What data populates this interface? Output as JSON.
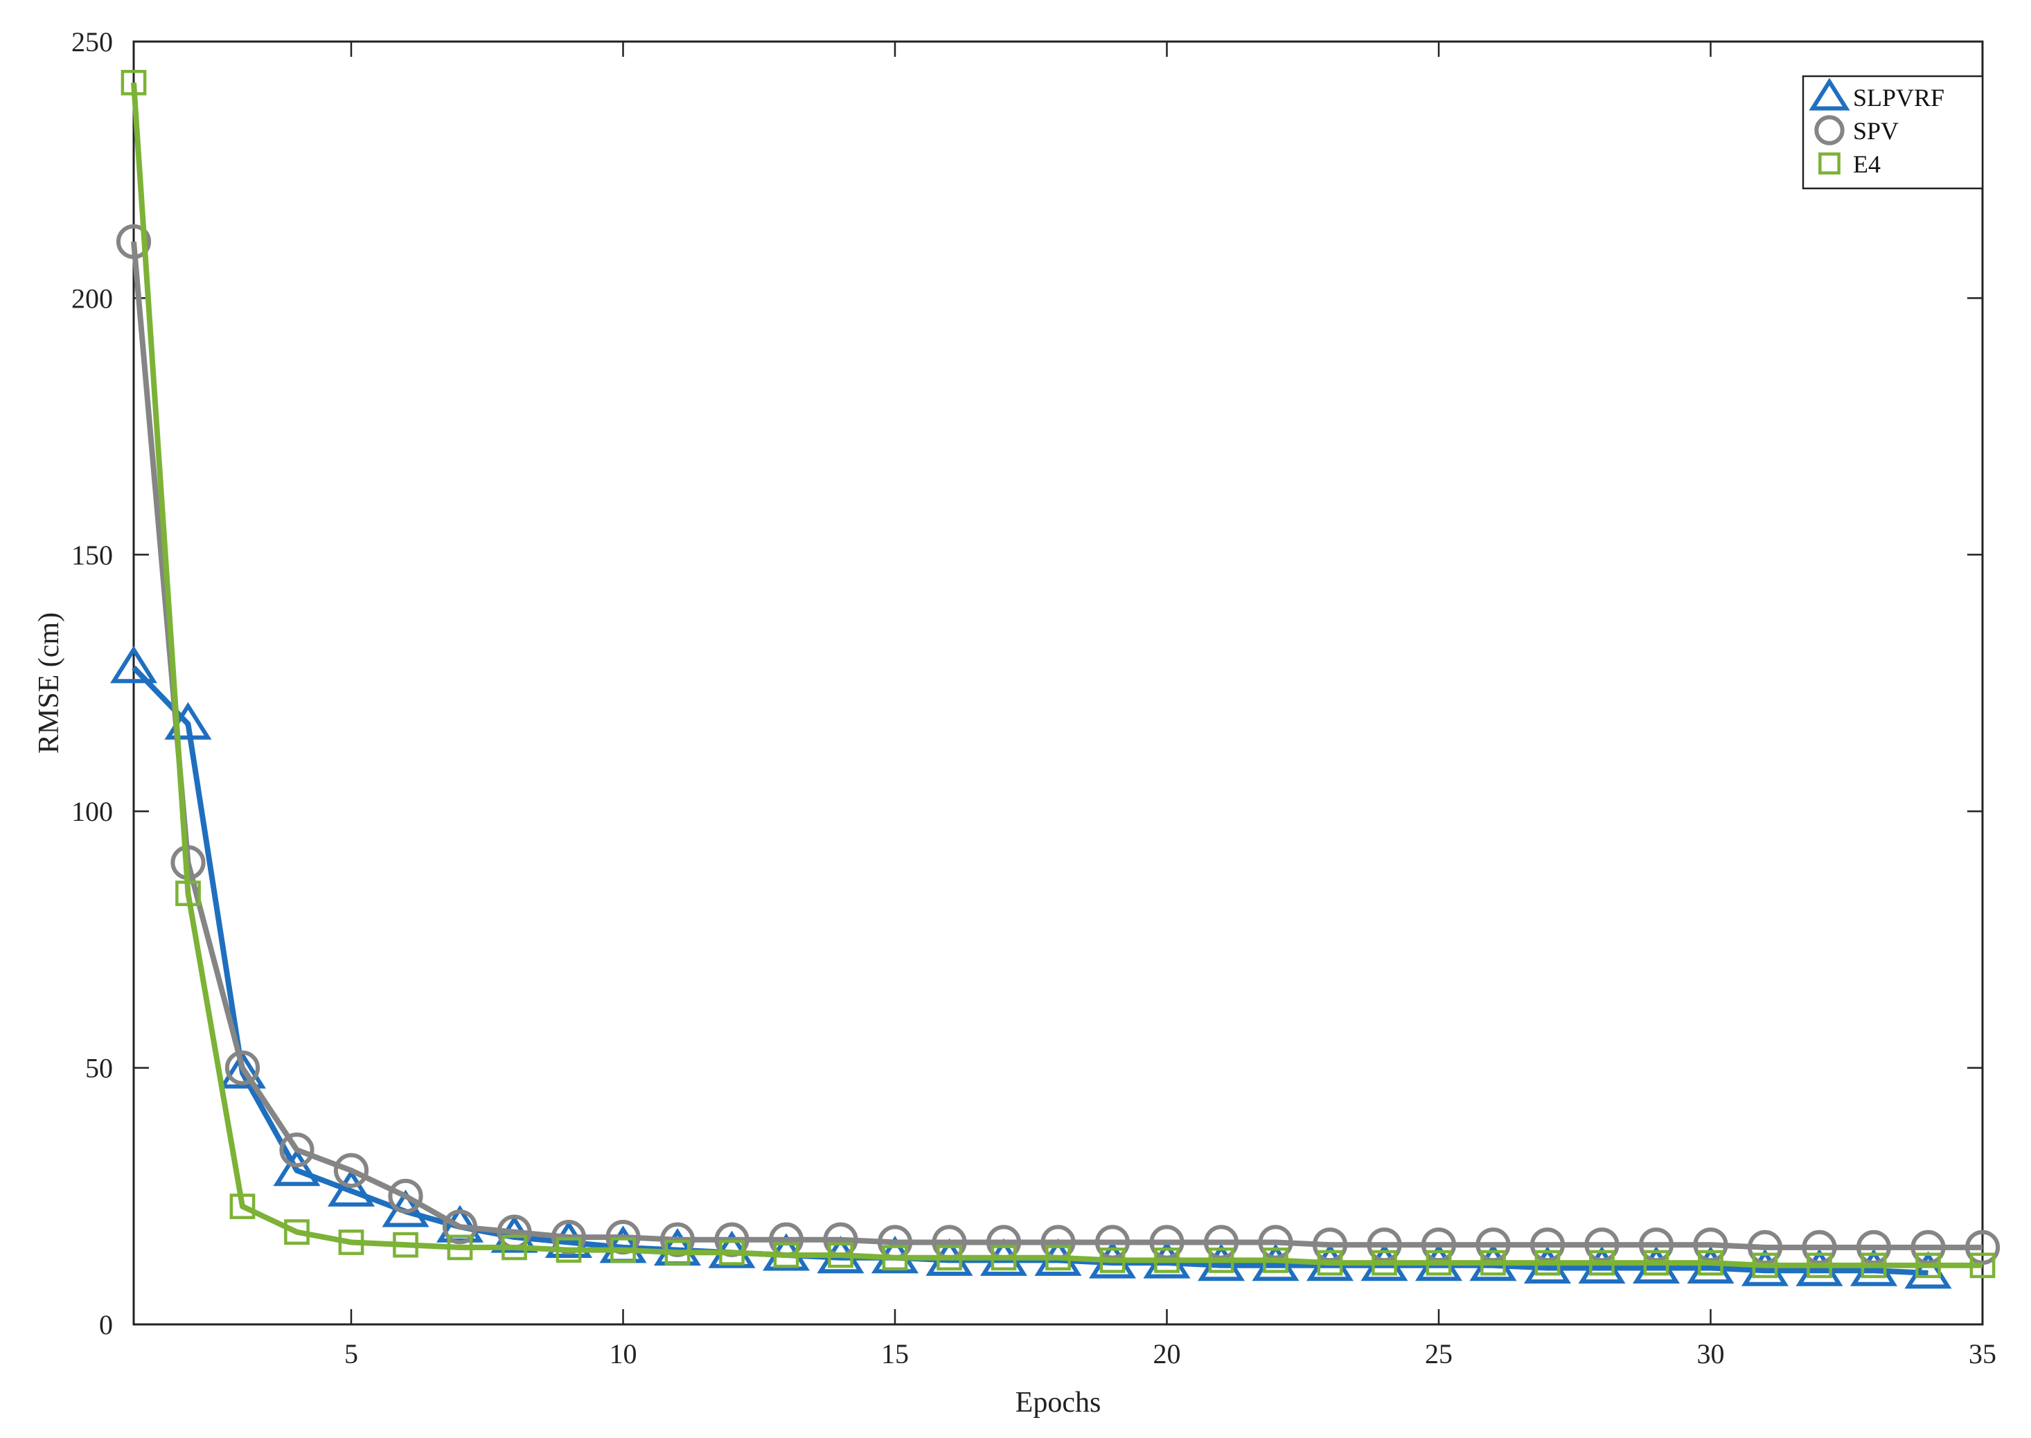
{
  "chart_data": {
    "type": "line",
    "title": "",
    "xlabel": "Epochs",
    "ylabel": "RMSE (cm)",
    "xlim": [
      1,
      35
    ],
    "ylim": [
      0,
      250
    ],
    "xticks": [
      5,
      10,
      15,
      20,
      25,
      30,
      35
    ],
    "yticks": [
      0,
      50,
      100,
      150,
      200,
      250
    ],
    "grid": false,
    "legend_position": "top-right",
    "series": [
      {
        "name": "SLPVRF",
        "color": "#1f6fbf",
        "marker": "triangle",
        "x": [
          1,
          2,
          3,
          4,
          5,
          6,
          7,
          8,
          9,
          10,
          11,
          12,
          13,
          14,
          15,
          16,
          17,
          18,
          19,
          20,
          21,
          22,
          23,
          24,
          25,
          26,
          27,
          28,
          29,
          30,
          31,
          32,
          33,
          34
        ],
        "values": [
          128,
          117,
          49,
          30,
          26,
          22,
          19,
          17,
          16,
          15,
          14.5,
          14,
          13.5,
          13,
          13,
          12.5,
          12.5,
          12.5,
          12,
          12,
          11.5,
          11.5,
          11.5,
          11.5,
          11.5,
          11.5,
          11,
          11,
          11,
          11,
          10.5,
          10.5,
          10.5,
          10
        ]
      },
      {
        "name": "SPV",
        "color": "#858585",
        "marker": "circle",
        "x": [
          1,
          2,
          3,
          4,
          5,
          6,
          7,
          8,
          9,
          10,
          11,
          12,
          13,
          14,
          15,
          16,
          17,
          18,
          19,
          20,
          21,
          22,
          23,
          24,
          25,
          26,
          27,
          28,
          29,
          30,
          31,
          32,
          33,
          34,
          35
        ],
        "values": [
          211,
          90,
          50,
          34,
          30,
          25,
          19,
          18,
          17,
          17,
          16.5,
          16.5,
          16.5,
          16.5,
          16,
          16,
          16,
          16,
          16,
          16,
          16,
          16,
          15.5,
          15.5,
          15.5,
          15.5,
          15.5,
          15.5,
          15.5,
          15.5,
          15,
          15,
          15,
          15,
          15
        ]
      },
      {
        "name": "E4",
        "color": "#7cb236",
        "marker": "square",
        "x": [
          1,
          2,
          3,
          4,
          5,
          6,
          7,
          8,
          9,
          10,
          11,
          12,
          13,
          14,
          15,
          16,
          17,
          18,
          19,
          20,
          21,
          22,
          23,
          24,
          25,
          26,
          27,
          28,
          29,
          30,
          31,
          32,
          33,
          34,
          35
        ],
        "values": [
          242,
          84,
          23,
          18,
          16,
          15.5,
          15,
          15,
          14.5,
          14.5,
          14,
          14,
          13.5,
          13.5,
          13,
          13,
          13,
          13,
          12.5,
          12.5,
          12.5,
          12.5,
          12,
          12,
          12,
          12,
          12,
          12,
          12,
          12,
          11.5,
          11.5,
          11.5,
          11.5,
          11.5
        ]
      }
    ]
  }
}
